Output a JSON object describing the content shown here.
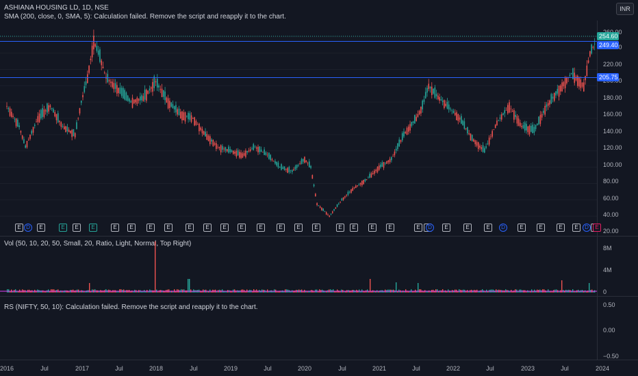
{
  "header": {
    "symbol_line": "ASHIANA HOUSING LD, 1D, NSE",
    "sma_line": "SMA (200, close, 0, SMA, 5): Calculation failed. Remove the script and reapply it to the chart.",
    "currency_button": "INR"
  },
  "price_axis": {
    "ticks": [
      "260.00",
      "240.00",
      "220.00",
      "200.00",
      "180.00",
      "160.00",
      "140.00",
      "120.00",
      "100.00",
      "80.00",
      "60.00",
      "40.00",
      "20.00"
    ],
    "current_price_label": "254.60",
    "line_label_1": "249.40",
    "line_label_2": "205.75"
  },
  "volume_pane": {
    "legend": "Vol (50, 10, 20, 50, Small, 20, Ratio, Light, Normal, Top Right)",
    "ticks": [
      "8M",
      "4M",
      "0"
    ]
  },
  "rs_pane": {
    "legend": "RS (NIFTY, 50, 10): Calculation failed. Remove the script and reapply it to the chart.",
    "ticks": [
      "0.50",
      "0.00",
      "−0.50"
    ]
  },
  "time_axis": {
    "ticks": [
      "2016",
      "Jul",
      "2017",
      "Jul",
      "2018",
      "Jul",
      "2019",
      "Jul",
      "2020",
      "Jul",
      "2021",
      "Jul",
      "2022",
      "Jul",
      "2023",
      "Jul",
      "2024"
    ]
  },
  "events": [
    "E",
    "D",
    "E",
    "E",
    "E",
    "E",
    "E",
    "E",
    "E",
    "E",
    "E",
    "E",
    "E",
    "E",
    "E",
    "E",
    "E",
    "E",
    "E",
    "E",
    "E",
    "E",
    "E",
    "E",
    "D",
    "E",
    "E",
    "E",
    "D",
    "E",
    "E",
    "E",
    "E",
    "D",
    "E",
    "E"
  ],
  "colors": {
    "background": "#131722",
    "up": "#26a69a",
    "down": "#ef5350",
    "horizontal_line": "#2962ff",
    "current_price": "#26a69a"
  },
  "chart_data": {
    "type": "candlestick",
    "symbol": "ASHIANA HOUSING LD",
    "interval": "1D",
    "exchange": "NSE",
    "y_range": [
      20,
      280
    ],
    "horizontal_levels": [
      249.4,
      205.75
    ],
    "last_price": 254.6,
    "series": [
      {
        "x": "2016-01",
        "close": 175
      },
      {
        "x": "2016-03",
        "close": 150
      },
      {
        "x": "2016-04",
        "close": 125
      },
      {
        "x": "2016-06",
        "close": 160
      },
      {
        "x": "2016-08",
        "close": 175
      },
      {
        "x": "2016-10",
        "close": 150
      },
      {
        "x": "2016-12",
        "close": 140
      },
      {
        "x": "2017-01",
        "close": 180
      },
      {
        "x": "2017-02",
        "close": 210
      },
      {
        "x": "2017-03",
        "close": 255
      },
      {
        "x": "2017-04",
        "close": 235
      },
      {
        "x": "2017-05",
        "close": 210
      },
      {
        "x": "2017-07",
        "close": 195
      },
      {
        "x": "2017-09",
        "close": 180
      },
      {
        "x": "2017-11",
        "close": 185
      },
      {
        "x": "2018-01",
        "close": 205
      },
      {
        "x": "2018-03",
        "close": 180
      },
      {
        "x": "2018-05",
        "close": 165
      },
      {
        "x": "2018-07",
        "close": 160
      },
      {
        "x": "2018-09",
        "close": 140
      },
      {
        "x": "2018-11",
        "close": 125
      },
      {
        "x": "2019-01",
        "close": 120
      },
      {
        "x": "2019-03",
        "close": 115
      },
      {
        "x": "2019-05",
        "close": 125
      },
      {
        "x": "2019-07",
        "close": 115
      },
      {
        "x": "2019-09",
        "close": 100
      },
      {
        "x": "2019-11",
        "close": 95
      },
      {
        "x": "2020-01",
        "close": 110
      },
      {
        "x": "2020-02",
        "close": 100
      },
      {
        "x": "2020-03",
        "close": 55
      },
      {
        "x": "2020-05",
        "close": 40
      },
      {
        "x": "2020-07",
        "close": 60
      },
      {
        "x": "2020-09",
        "close": 75
      },
      {
        "x": "2020-11",
        "close": 85
      },
      {
        "x": "2021-01",
        "close": 100
      },
      {
        "x": "2021-03",
        "close": 110
      },
      {
        "x": "2021-05",
        "close": 140
      },
      {
        "x": "2021-07",
        "close": 160
      },
      {
        "x": "2021-08",
        "close": 175
      },
      {
        "x": "2021-09",
        "close": 200
      },
      {
        "x": "2021-10",
        "close": 190
      },
      {
        "x": "2021-12",
        "close": 175
      },
      {
        "x": "2022-02",
        "close": 160
      },
      {
        "x": "2022-04",
        "close": 135
      },
      {
        "x": "2022-06",
        "close": 120
      },
      {
        "x": "2022-08",
        "close": 155
      },
      {
        "x": "2022-10",
        "close": 175
      },
      {
        "x": "2022-12",
        "close": 150
      },
      {
        "x": "2023-02",
        "close": 145
      },
      {
        "x": "2023-04",
        "close": 175
      },
      {
        "x": "2023-06",
        "close": 195
      },
      {
        "x": "2023-08",
        "close": 215
      },
      {
        "x": "2023-10",
        "close": 200
      },
      {
        "x": "2023-11",
        "close": 240
      },
      {
        "x": "2023-12",
        "close": 254.6
      }
    ]
  }
}
